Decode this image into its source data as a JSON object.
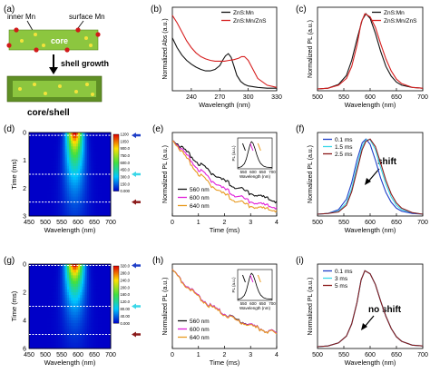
{
  "colors": {
    "black": "#111111",
    "red": "#d61f1f",
    "magenta": "#e020d8",
    "orange": "#e89a20",
    "blue": "#1f3fc8",
    "cyan": "#3ad7e8",
    "darkred": "#8b1a1a",
    "core_fill": "#8cc63f",
    "shell_fill": "#5f8f25",
    "dopant_inner": "#f2e33b",
    "dopant_surface": "#d11a1a"
  },
  "panel_a": {
    "label": "(a)",
    "inner_label": "inner Mn",
    "surface_label": "surface Mn",
    "core_label": "core",
    "arrow_label": "shell growth",
    "result_label": "core/shell"
  },
  "panel_labels": {
    "b": "(b)",
    "c": "(c)",
    "d": "(d)",
    "e": "(e)",
    "f": "(f)",
    "g": "(g)",
    "h": "(h)",
    "i": "(i)"
  },
  "annotations": {
    "f": "shift",
    "i": "no shift"
  },
  "chart_data": [
    {
      "id": "b",
      "type": "line",
      "xlabel": "Wavelength (nm)",
      "ylabel": "Normalized Abs (a.u.)",
      "xlim": [
        220,
        330
      ],
      "xticks": [
        240,
        270,
        300,
        330
      ],
      "series": [
        {
          "name": "ZnS:Mn",
          "color": "black",
          "x": [
            220,
            225,
            230,
            235,
            240,
            245,
            250,
            255,
            260,
            265,
            270,
            273,
            276,
            279,
            282,
            285,
            288,
            292,
            296,
            300,
            310,
            320,
            330
          ],
          "y": [
            0.68,
            0.55,
            0.45,
            0.38,
            0.33,
            0.29,
            0.26,
            0.24,
            0.24,
            0.26,
            0.31,
            0.38,
            0.44,
            0.47,
            0.42,
            0.3,
            0.18,
            0.1,
            0.06,
            0.04,
            0.02,
            0.01,
            0.01
          ]
        },
        {
          "name": "ZnS:Mn/ZnS",
          "color": "red",
          "x": [
            220,
            225,
            230,
            235,
            240,
            245,
            250,
            255,
            260,
            265,
            270,
            275,
            280,
            285,
            290,
            293,
            296,
            300,
            305,
            310,
            320,
            330
          ],
          "y": [
            0.98,
            0.88,
            0.76,
            0.64,
            0.55,
            0.48,
            0.43,
            0.4,
            0.38,
            0.37,
            0.37,
            0.37,
            0.38,
            0.39,
            0.41,
            0.43,
            0.43,
            0.38,
            0.26,
            0.14,
            0.05,
            0.02
          ]
        }
      ]
    },
    {
      "id": "c",
      "type": "line",
      "xlabel": "Wavelength (nm)",
      "ylabel": "Normalized PL (a.u.)",
      "xlim": [
        500,
        700
      ],
      "xticks": [
        500,
        550,
        600,
        650,
        700
      ],
      "series": [
        {
          "name": "ZnS:Mn",
          "color": "black",
          "x": [
            500,
            520,
            540,
            555,
            565,
            575,
            585,
            592,
            600,
            610,
            620,
            630,
            640,
            650,
            660,
            680,
            700
          ],
          "y": [
            0.0,
            0.01,
            0.06,
            0.18,
            0.38,
            0.66,
            0.92,
            1.0,
            0.94,
            0.74,
            0.5,
            0.3,
            0.17,
            0.09,
            0.05,
            0.02,
            0.01
          ]
        },
        {
          "name": "ZnS:Mn/ZnS",
          "color": "red",
          "x": [
            500,
            520,
            540,
            555,
            565,
            575,
            583,
            590,
            600,
            610,
            620,
            630,
            640,
            650,
            660,
            680,
            700
          ],
          "y": [
            0.0,
            0.01,
            0.05,
            0.14,
            0.3,
            0.58,
            0.88,
            1.0,
            0.96,
            0.82,
            0.6,
            0.4,
            0.24,
            0.13,
            0.07,
            0.02,
            0.01
          ]
        }
      ]
    },
    {
      "id": "d",
      "type": "heatmap",
      "xlabel": "Wavelength (nm)",
      "ylabel": "Time (ms)",
      "xlim": [
        450,
        700
      ],
      "ylim": [
        0,
        3
      ],
      "xticks": [
        450,
        500,
        550,
        600,
        650,
        700
      ],
      "yticks": [
        0,
        1,
        2,
        3
      ],
      "center": 590,
      "width_base": 22,
      "width_slope": 6,
      "decay": 0.9,
      "markers": [
        {
          "t": 0.1,
          "color": "blue"
        },
        {
          "t": 1.5,
          "color": "cyan"
        },
        {
          "t": 2.5,
          "color": "darkred"
        }
      ],
      "colorbar_ticks": [
        "0.000",
        "150.0",
        "300.0",
        "450.0",
        "600.0",
        "750.0",
        "900.0",
        "1050",
        "1200"
      ]
    },
    {
      "id": "e",
      "type": "line",
      "xlabel": "Time (ms)",
      "ylabel": "Normalized PL (a.u.)",
      "xlim": [
        0,
        4
      ],
      "xticks": [
        0,
        1,
        2,
        3,
        4
      ],
      "series": [
        {
          "name": "560 nm",
          "color": "black",
          "x": [
            0,
            0.5,
            1,
            1.5,
            2,
            2.5,
            3,
            3.5,
            4
          ],
          "y": [
            1,
            0.84,
            0.68,
            0.55,
            0.44,
            0.35,
            0.28,
            0.22,
            0.17
          ]
        },
        {
          "name": "600 nm",
          "color": "magenta",
          "x": [
            0,
            0.5,
            1,
            1.5,
            2,
            2.5,
            3,
            3.5,
            4
          ],
          "y": [
            1,
            0.8,
            0.6,
            0.45,
            0.33,
            0.24,
            0.17,
            0.12,
            0.09
          ]
        },
        {
          "name": "640 nm",
          "color": "orange",
          "x": [
            0,
            0.5,
            1,
            1.5,
            2,
            2.5,
            3,
            3.5,
            4
          ],
          "y": [
            1,
            0.76,
            0.54,
            0.38,
            0.26,
            0.17,
            0.11,
            0.07,
            0.05
          ]
        }
      ],
      "inset": {
        "xlabel": "Wavelength (nm)",
        "ylabel": "PL (a.u.)",
        "xticks": [
          550,
          600,
          650,
          700
        ],
        "xlim": [
          520,
          700
        ],
        "x": [
          520,
          540,
          555,
          565,
          575,
          585,
          592,
          600,
          610,
          620,
          630,
          640,
          655,
          670,
          700
        ],
        "y": [
          0.0,
          0.05,
          0.16,
          0.34,
          0.62,
          0.9,
          1.0,
          0.94,
          0.74,
          0.5,
          0.3,
          0.17,
          0.07,
          0.03,
          0.01
        ]
      }
    },
    {
      "id": "f",
      "type": "line",
      "xlabel": "Wavelength (nm)",
      "ylabel": "Normalized PL (a.u.)",
      "xlim": [
        500,
        700
      ],
      "xticks": [
        500,
        550,
        600,
        650,
        700
      ],
      "series": [
        {
          "name": "0.1 ms",
          "color": "blue",
          "x": [
            500,
            520,
            540,
            555,
            565,
            575,
            585,
            592,
            600,
            610,
            620,
            630,
            640,
            650,
            660,
            680,
            700
          ],
          "y": [
            0.0,
            0.01,
            0.06,
            0.2,
            0.42,
            0.72,
            0.95,
            1.0,
            0.93,
            0.72,
            0.48,
            0.29,
            0.16,
            0.08,
            0.04,
            0.01,
            0.0
          ]
        },
        {
          "name": "1.5 ms",
          "color": "cyan",
          "x": [
            500,
            520,
            540,
            555,
            565,
            575,
            585,
            592,
            600,
            610,
            620,
            630,
            640,
            650,
            660,
            680,
            700
          ],
          "y": [
            0.0,
            0.01,
            0.04,
            0.15,
            0.34,
            0.64,
            0.9,
            0.99,
            0.99,
            0.86,
            0.62,
            0.4,
            0.23,
            0.12,
            0.06,
            0.02,
            0.0
          ]
        },
        {
          "name": "2.5 ms",
          "color": "darkred",
          "x": [
            500,
            520,
            540,
            555,
            565,
            575,
            585,
            592,
            600,
            610,
            620,
            630,
            640,
            650,
            660,
            680,
            700
          ],
          "y": [
            0.0,
            0.01,
            0.03,
            0.12,
            0.3,
            0.58,
            0.86,
            0.97,
            1.0,
            0.9,
            0.68,
            0.45,
            0.27,
            0.15,
            0.08,
            0.02,
            0.0
          ]
        }
      ]
    },
    {
      "id": "g",
      "type": "heatmap",
      "xlabel": "Wavelength (nm)",
      "ylabel": "Time (ms)",
      "xlim": [
        450,
        700
      ],
      "ylim": [
        0,
        6
      ],
      "xticks": [
        450,
        500,
        550,
        600,
        650,
        700
      ],
      "yticks": [
        0,
        2,
        4,
        6
      ],
      "center": 590,
      "width_base": 24,
      "width_slope": 3,
      "decay": 0.55,
      "markers": [
        {
          "t": 0.1,
          "color": "blue"
        },
        {
          "t": 3,
          "color": "cyan"
        },
        {
          "t": 5,
          "color": "darkred"
        }
      ],
      "colorbar_ticks": [
        "0.000",
        "40.00",
        "80.00",
        "120.0",
        "160.0",
        "200.0",
        "240.0",
        "280.0",
        "320.0"
      ]
    },
    {
      "id": "h",
      "type": "line",
      "xlabel": "Time (ms)",
      "ylabel": "Normalized PL (a.u.)",
      "xlim": [
        0,
        4
      ],
      "xticks": [
        0,
        1,
        2,
        3,
        4
      ],
      "series": [
        {
          "name": "560 nm",
          "color": "black",
          "x": [
            0,
            0.5,
            1,
            1.5,
            2,
            2.5,
            3,
            3.5,
            4
          ],
          "y": [
            1,
            0.82,
            0.66,
            0.53,
            0.43,
            0.35,
            0.28,
            0.22,
            0.18
          ]
        },
        {
          "name": "600 nm",
          "color": "magenta",
          "x": [
            0,
            0.5,
            1,
            1.5,
            2,
            2.5,
            3,
            3.5,
            4
          ],
          "y": [
            1,
            0.82,
            0.66,
            0.53,
            0.43,
            0.34,
            0.28,
            0.22,
            0.18
          ]
        },
        {
          "name": "640 nm",
          "color": "orange",
          "x": [
            0,
            0.5,
            1,
            1.5,
            2,
            2.5,
            3,
            3.5,
            4
          ],
          "y": [
            1,
            0.81,
            0.65,
            0.52,
            0.42,
            0.34,
            0.27,
            0.22,
            0.17
          ]
        }
      ],
      "inset": {
        "xlabel": "Wavelength (nm)",
        "ylabel": "PL (a.u.)",
        "xticks": [
          550,
          600,
          650,
          700
        ],
        "xlim": [
          520,
          700
        ],
        "x": [
          520,
          540,
          555,
          565,
          575,
          585,
          592,
          600,
          610,
          620,
          630,
          640,
          655,
          670,
          700
        ],
        "y": [
          0.0,
          0.05,
          0.16,
          0.34,
          0.62,
          0.9,
          1.0,
          0.94,
          0.74,
          0.5,
          0.3,
          0.17,
          0.07,
          0.03,
          0.01
        ]
      }
    },
    {
      "id": "i",
      "type": "line",
      "xlabel": "Wavelength (nm)",
      "ylabel": "Normalized PL (a.u.)",
      "xlim": [
        500,
        700
      ],
      "xticks": [
        500,
        550,
        600,
        650,
        700
      ],
      "series": [
        {
          "name": "0.1 ms",
          "color": "blue",
          "x": [
            500,
            520,
            540,
            555,
            565,
            575,
            583,
            590,
            600,
            610,
            620,
            630,
            640,
            650,
            660,
            680,
            700
          ],
          "y": [
            0.0,
            0.01,
            0.05,
            0.14,
            0.3,
            0.58,
            0.88,
            1.0,
            0.96,
            0.82,
            0.6,
            0.4,
            0.24,
            0.13,
            0.07,
            0.02,
            0.01
          ]
        },
        {
          "name": "3 ms",
          "color": "cyan",
          "x": [
            500,
            520,
            540,
            555,
            565,
            575,
            583,
            590,
            600,
            610,
            620,
            630,
            640,
            650,
            660,
            680,
            700
          ],
          "y": [
            0.0,
            0.01,
            0.05,
            0.14,
            0.3,
            0.58,
            0.88,
            1.0,
            0.96,
            0.82,
            0.6,
            0.4,
            0.24,
            0.13,
            0.07,
            0.02,
            0.01
          ]
        },
        {
          "name": "5 ms",
          "color": "darkred",
          "x": [
            500,
            520,
            540,
            555,
            565,
            575,
            583,
            590,
            600,
            610,
            620,
            630,
            640,
            650,
            660,
            680,
            700
          ],
          "y": [
            0.0,
            0.01,
            0.05,
            0.14,
            0.3,
            0.58,
            0.88,
            1.0,
            0.96,
            0.82,
            0.6,
            0.4,
            0.24,
            0.13,
            0.07,
            0.02,
            0.01
          ]
        }
      ]
    }
  ]
}
